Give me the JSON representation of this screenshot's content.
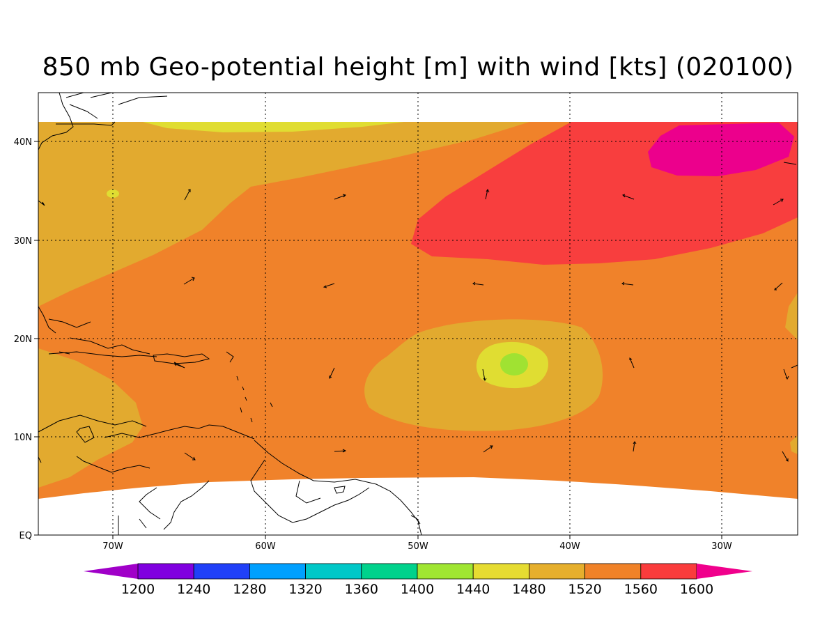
{
  "title": "850 mb Geo-potential height [m] with wind [kts] (020100)",
  "colors": {
    "c1520": "#E2AA2F",
    "c1560": "#F0822A",
    "c1600": "#F83E3E",
    "c_hi": "#EC008C",
    "c1480": "#E0DD32",
    "c1440": "#A0E232",
    "land_line": "#000000",
    "grid": "#000000"
  },
  "map": {
    "lon_labels": [
      "70W",
      "60W",
      "50W",
      "40W",
      "30W"
    ],
    "lat_labels": [
      "40N",
      "30N",
      "20N",
      "10N",
      "EQ"
    ]
  },
  "colorbar": {
    "levels": [
      "1200",
      "1240",
      "1280",
      "1320",
      "1360",
      "1400",
      "1440",
      "1480",
      "1520",
      "1560",
      "1600"
    ],
    "colors": [
      "#A000C8",
      "#8000E0",
      "#2040F8",
      "#00A0FF",
      "#00C8C8",
      "#00D28C",
      "#A0E632",
      "#E6DC32",
      "#E6AF2D",
      "#F08228",
      "#FA3C3C",
      "#F0008C"
    ]
  }
}
